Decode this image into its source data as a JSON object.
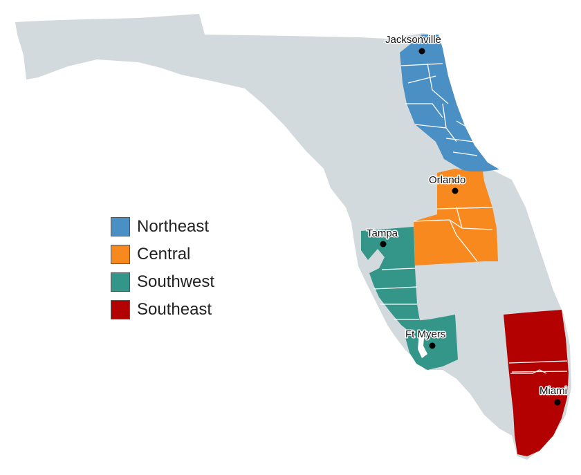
{
  "regions": [
    {
      "key": "northeast",
      "label": "Northeast",
      "color": "#4a90c4"
    },
    {
      "key": "central",
      "label": "Central",
      "color": "#f7891f"
    },
    {
      "key": "southwest",
      "label": "Southwest",
      "color": "#349589"
    },
    {
      "key": "southeast",
      "label": "Southeast",
      "color": "#b30000"
    }
  ],
  "cities": [
    {
      "name": "Jacksonville",
      "region": "northeast"
    },
    {
      "name": "Orlando",
      "region": "central"
    },
    {
      "name": "Tampa",
      "region": "southwest"
    },
    {
      "name": "Ft Myers",
      "region": "southwest"
    },
    {
      "name": "Miami",
      "region": "southeast"
    }
  ],
  "colors": {
    "land": "#d3dadd",
    "background": "#ffffff"
  }
}
